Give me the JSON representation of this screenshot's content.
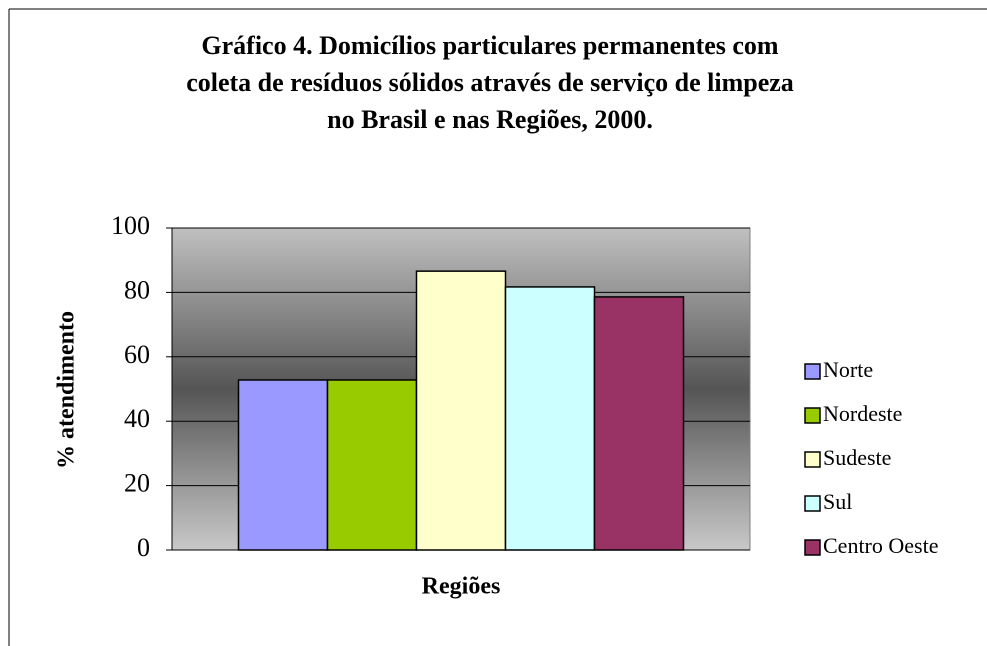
{
  "chart_data": {
    "type": "bar",
    "title": [
      "Gráfico 4. Domicílios particulares permanentes com",
      "coleta de resíduos sólidos através de serviço de limpeza",
      "no Brasil e nas Regiões, 2000."
    ],
    "x_label": "Regiões",
    "y_label": "% atendimento",
    "categories": [
      null
    ],
    "series": [
      {
        "name": "Norte",
        "color": "#9999ff",
        "values": [
          52.8
        ]
      },
      {
        "name": "Nordeste",
        "color": "#99cc00",
        "values": [
          52.8
        ]
      },
      {
        "name": "Sudeste",
        "color": "#ffffcc",
        "values": [
          86.6
        ]
      },
      {
        "name": "Sul",
        "color": "#ccffff",
        "values": [
          81.7
        ]
      },
      {
        "name": "Centro Oeste",
        "color": "#993366",
        "values": [
          78.6
        ]
      }
    ],
    "ylim": [
      0,
      100
    ],
    "yticks": [
      0,
      20,
      40,
      60,
      80,
      100
    ],
    "grid": true,
    "legend": "right"
  }
}
